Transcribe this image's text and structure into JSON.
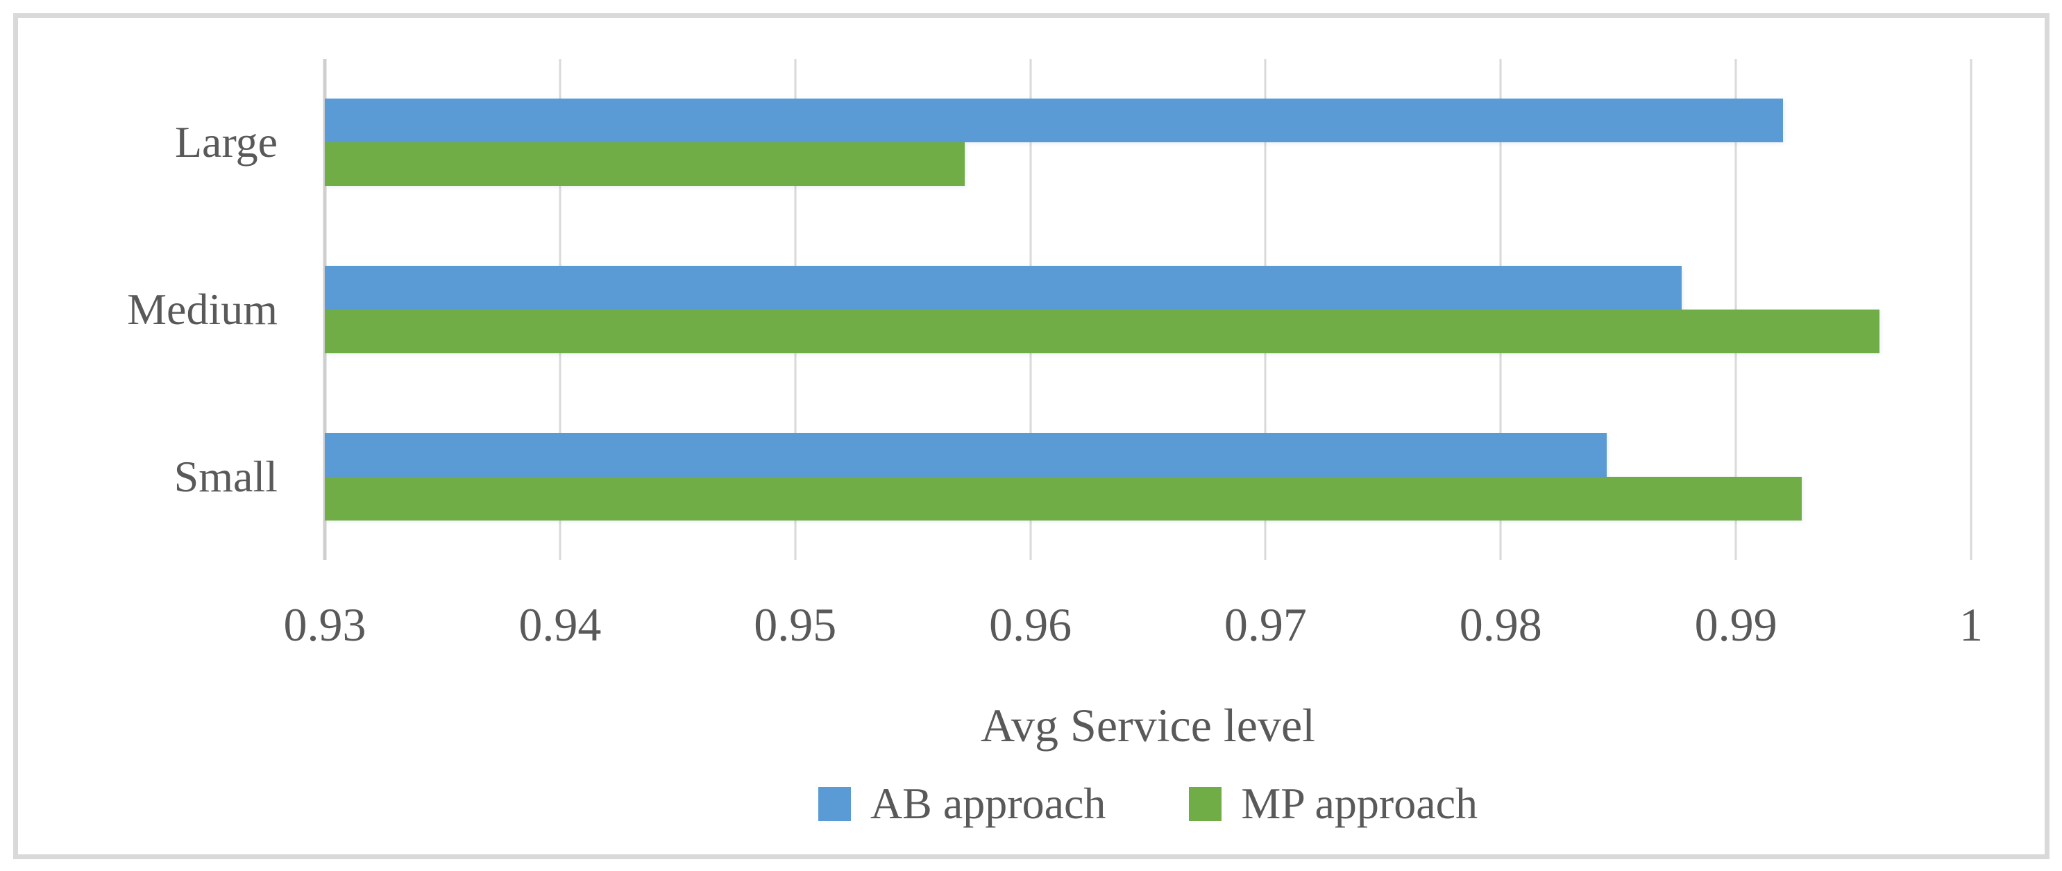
{
  "figure": {
    "background": "#FFFFFF",
    "border_color": "#D9D9D9",
    "text_color": "#595959",
    "gridline_color": "#D9D9D9",
    "axisline_color": "#CFCFCF"
  },
  "chart_data": {
    "type": "bar",
    "orientation": "horizontal",
    "title": "",
    "xlabel": "Avg Service level",
    "categories": [
      "Large",
      "Medium",
      "Small"
    ],
    "series": [
      {
        "name": "AB approach",
        "color": "#5B9BD5",
        "values": [
          0.992,
          0.9877,
          0.9845
        ]
      },
      {
        "name": "MP approach",
        "color": "#70AD47",
        "values": [
          0.9572,
          0.9961,
          0.9928
        ]
      }
    ],
    "xlim": [
      0.93,
      1.0
    ],
    "xticks": [
      0.93,
      0.94,
      0.95,
      0.96,
      0.97,
      0.98,
      0.99,
      1
    ],
    "xtick_labels": [
      "0.93",
      "0.94",
      "0.95",
      "0.96",
      "0.97",
      "0.98",
      "0.99",
      "1"
    ],
    "grid": true,
    "legend_position": "bottom"
  }
}
